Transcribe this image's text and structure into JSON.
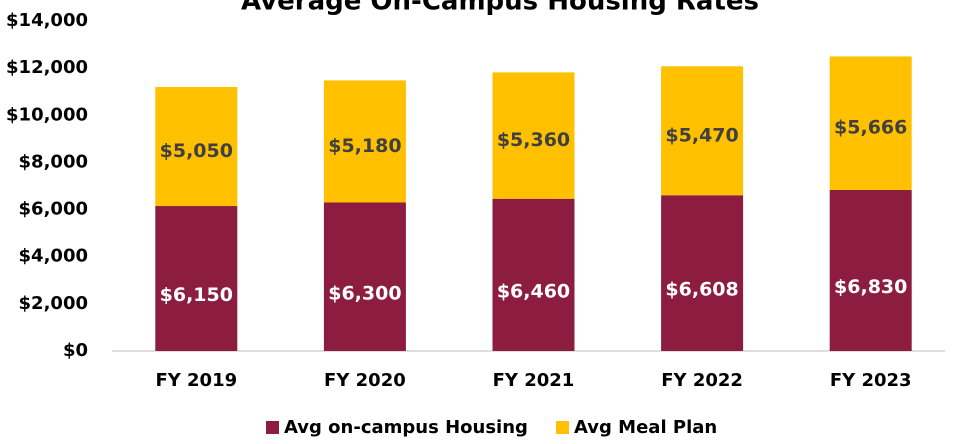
{
  "chart_data": {
    "type": "stacked_bar",
    "title": "Average On-Campus Housing Rates",
    "categories": [
      "FY 2019",
      "FY 2020",
      "FY 2021",
      "FY 2022",
      "FY 2023"
    ],
    "series": [
      {
        "name": "Avg on-campus Housing",
        "color": "#8c1d40",
        "values": [
          6150,
          6300,
          6460,
          6608,
          6830
        ],
        "value_labels": [
          "$6,150",
          "$6,300",
          "$6,460",
          "$6,608",
          "$6,830"
        ]
      },
      {
        "name": "Avg Meal Plan",
        "color": "#ffc000",
        "values": [
          5050,
          5180,
          5360,
          5470,
          5666
        ],
        "value_labels": [
          "$5,050",
          "$5,180",
          "$5,360",
          "$5,470",
          "$5,666"
        ]
      }
    ],
    "ylim": [
      0,
      14000
    ],
    "yticks": [
      {
        "value": 0,
        "label": "$0"
      },
      {
        "value": 2000,
        "label": "$2,000"
      },
      {
        "value": 4000,
        "label": "$4,000"
      },
      {
        "value": 6000,
        "label": "$6,000"
      },
      {
        "value": 8000,
        "label": "$8,000"
      },
      {
        "value": 10000,
        "label": "$10,000"
      },
      {
        "value": 12000,
        "label": "$12,000"
      },
      {
        "value": 14000,
        "label": "$14,000"
      }
    ],
    "grid": false,
    "legend": "bottom"
  }
}
